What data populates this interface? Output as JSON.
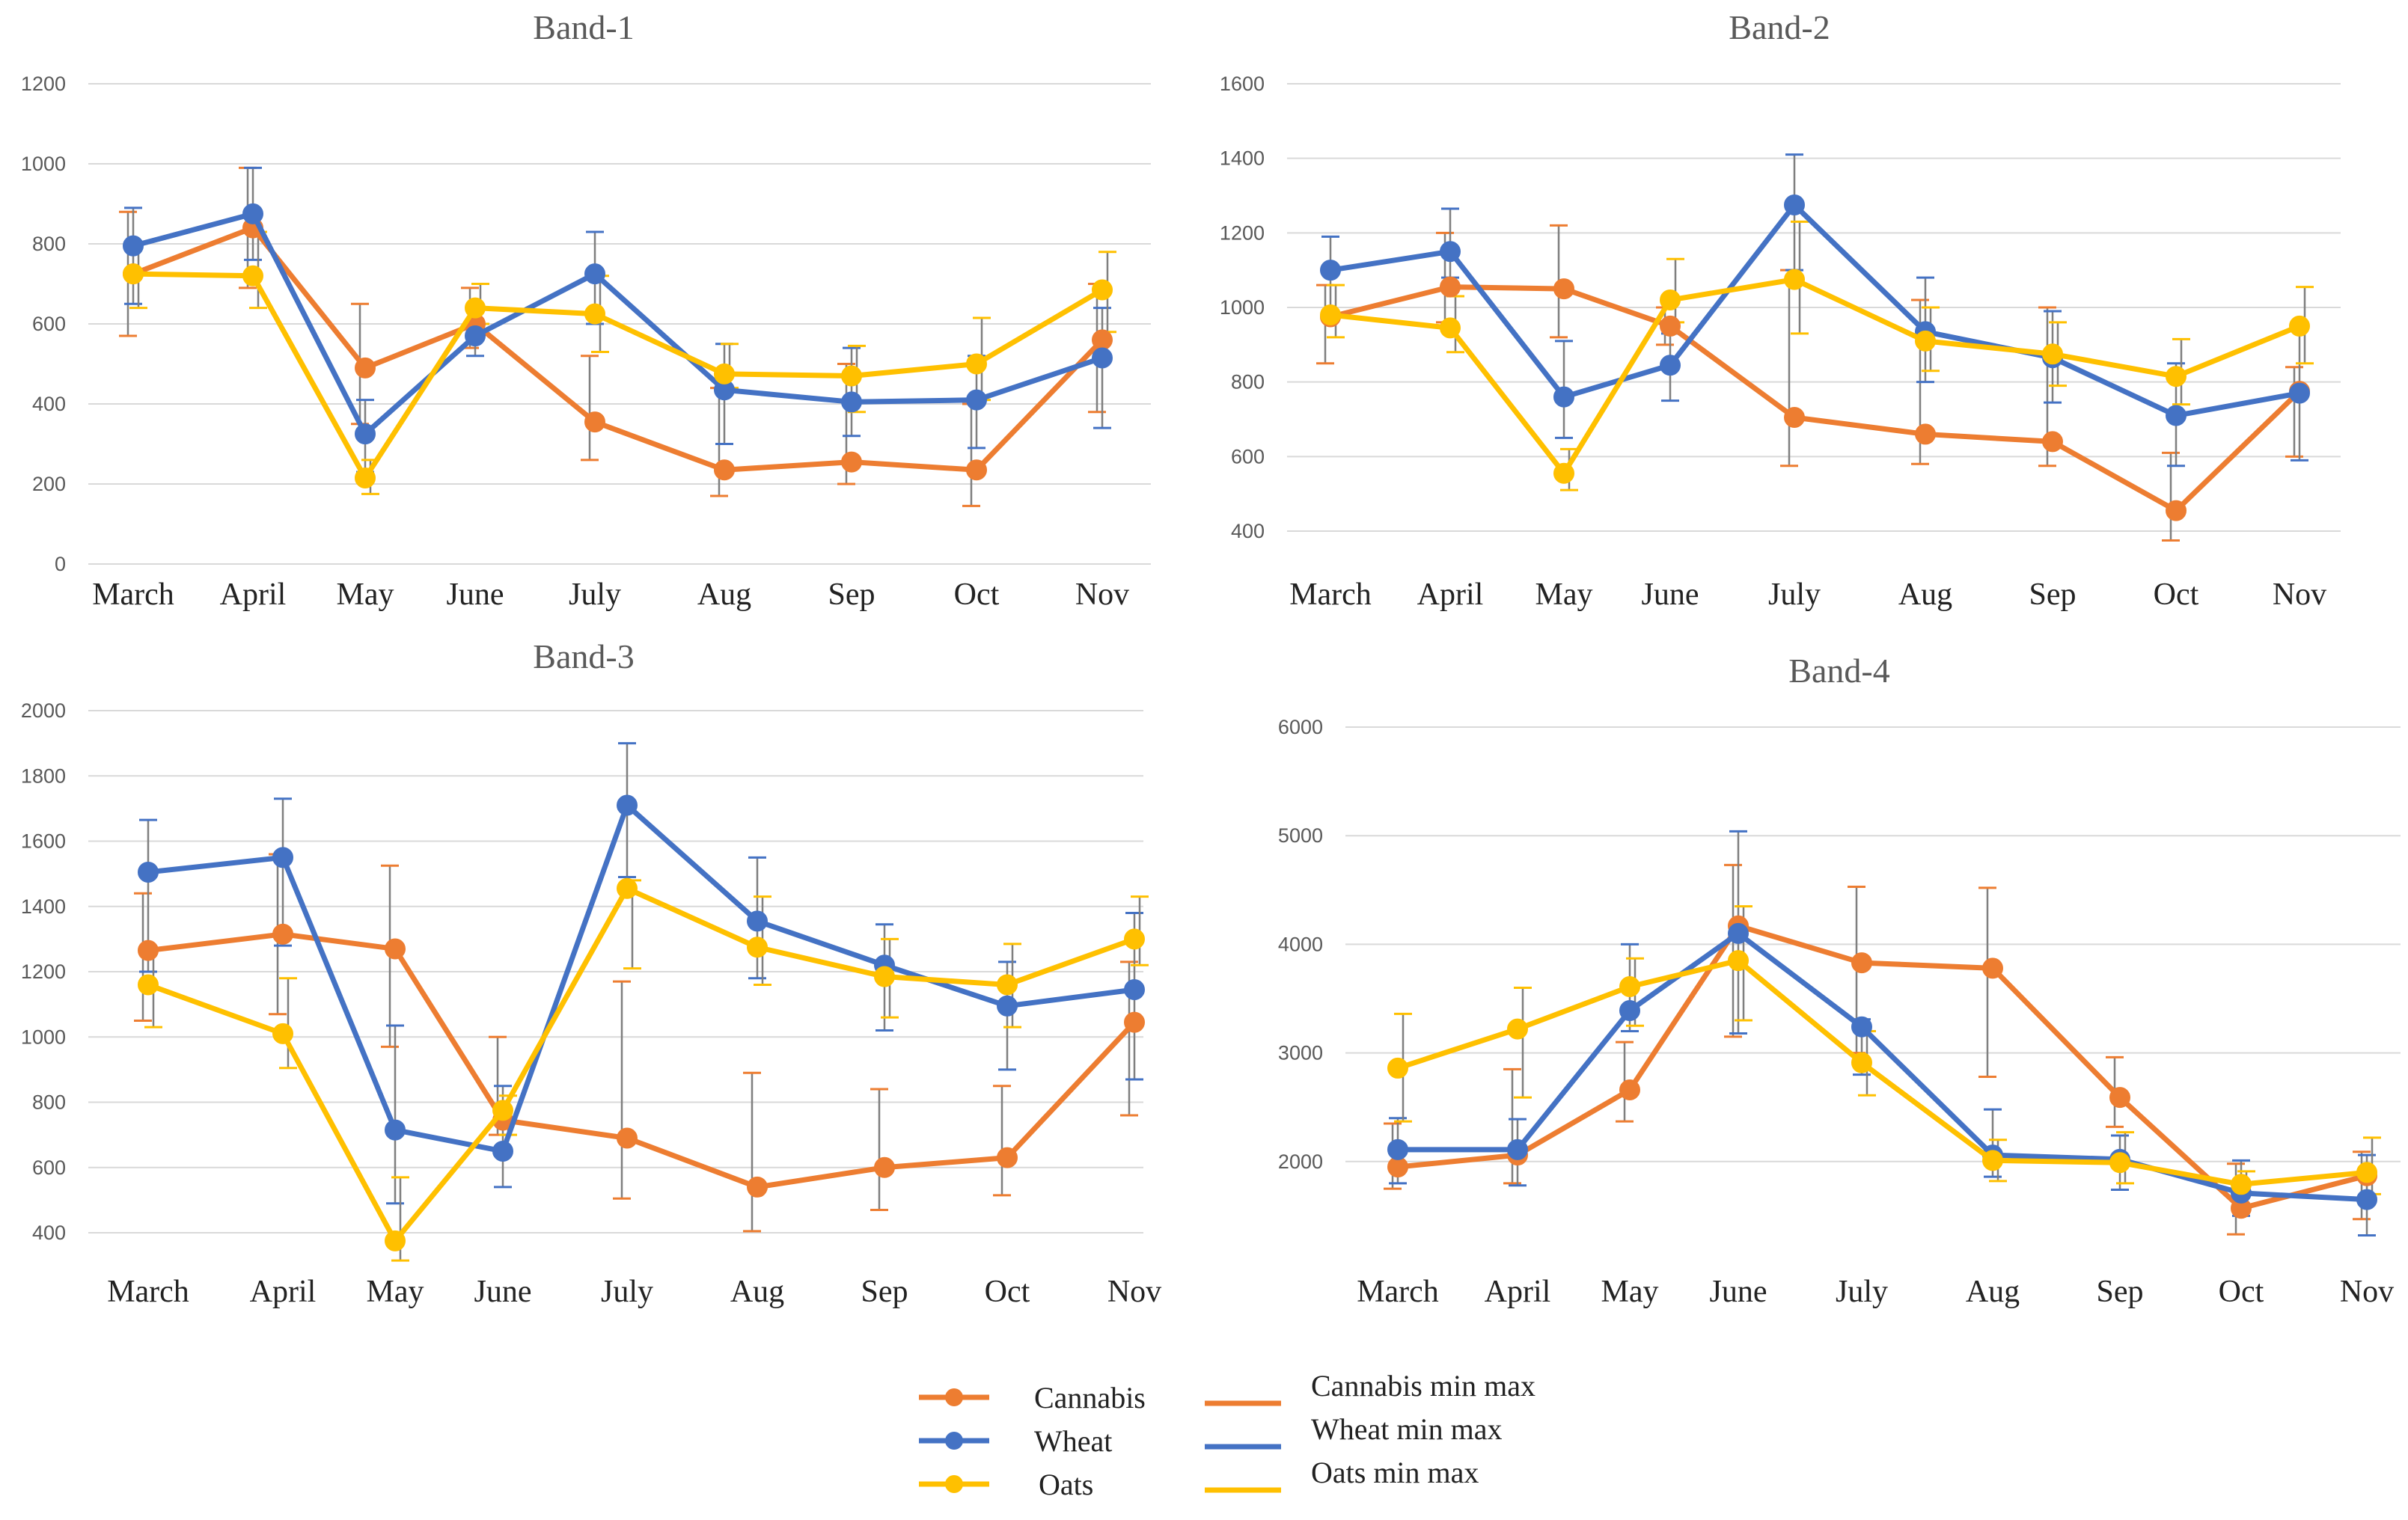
{
  "chart_data": [
    {
      "type": "line",
      "title": "Band-1",
      "categories": [
        "March",
        "April",
        "May",
        "June",
        "July",
        "Aug",
        "Sep",
        "Oct",
        "Nov"
      ],
      "ylim": [
        0,
        1200
      ],
      "yticks": [
        0,
        200,
        400,
        600,
        800,
        1000,
        1200
      ],
      "series": [
        {
          "name": "Cannabis",
          "values": [
            725,
            840,
            490,
            600,
            355,
            235,
            255,
            235,
            560
          ],
          "min": [
            570,
            690,
            350,
            540,
            260,
            170,
            200,
            145,
            380
          ],
          "max": [
            880,
            990,
            650,
            690,
            520,
            440,
            500,
            400,
            700
          ]
        },
        {
          "name": "Wheat",
          "values": [
            795,
            875,
            325,
            570,
            725,
            435,
            405,
            410,
            515
          ],
          "min": [
            650,
            760,
            230,
            520,
            600,
            300,
            320,
            290,
            340
          ],
          "max": [
            890,
            990,
            410,
            630,
            830,
            550,
            540,
            520,
            640
          ]
        },
        {
          "name": "Oats",
          "values": [
            725,
            720,
            215,
            640,
            625,
            475,
            470,
            500,
            685
          ],
          "min": [
            640,
            640,
            175,
            600,
            530,
            440,
            380,
            410,
            580
          ],
          "max": [
            800,
            830,
            260,
            700,
            720,
            550,
            545,
            615,
            780
          ]
        }
      ]
    },
    {
      "type": "line",
      "title": "Band-2",
      "categories": [
        "March",
        "April",
        "May",
        "June",
        "July",
        "Aug",
        "Sep",
        "Oct",
        "Nov"
      ],
      "ylim": [
        400,
        1600
      ],
      "yticks": [
        400,
        600,
        800,
        1000,
        1200,
        1400,
        1600
      ],
      "series": [
        {
          "name": "Cannabis",
          "values": [
            975,
            1055,
            1050,
            950,
            705,
            660,
            640,
            455,
            775
          ],
          "min": [
            850,
            960,
            920,
            900,
            575,
            580,
            575,
            375,
            600
          ],
          "max": [
            1060,
            1200,
            1220,
            1000,
            1100,
            1020,
            1000,
            610,
            840
          ]
        },
        {
          "name": "Wheat",
          "values": [
            1100,
            1150,
            760,
            845,
            1275,
            935,
            865,
            710,
            770
          ],
          "min": [
            980,
            1080,
            650,
            750,
            1100,
            800,
            745,
            575,
            590
          ],
          "max": [
            1190,
            1265,
            910,
            930,
            1410,
            1080,
            990,
            850,
            960
          ]
        },
        {
          "name": "Oats",
          "values": [
            980,
            945,
            555,
            1020,
            1075,
            910,
            875,
            815,
            950
          ],
          "min": [
            920,
            880,
            510,
            960,
            930,
            830,
            790,
            740,
            850
          ],
          "max": [
            1060,
            1030,
            620,
            1130,
            1230,
            1000,
            960,
            915,
            1055
          ]
        }
      ]
    },
    {
      "type": "line",
      "title": "Band-3",
      "categories": [
        "March",
        "April",
        "May",
        "June",
        "July",
        "Aug",
        "Sep",
        "Oct",
        "Nov"
      ],
      "ylim": [
        400,
        2000
      ],
      "yticks": [
        400,
        600,
        800,
        1000,
        1200,
        1400,
        1600,
        1800,
        2000
      ],
      "series": [
        {
          "name": "Cannabis",
          "values": [
            1265,
            1315,
            1270,
            745,
            690,
            540,
            600,
            630,
            1045
          ],
          "min": [
            1050,
            1070,
            970,
            700,
            505,
            405,
            470,
            515,
            760
          ],
          "max": [
            1440,
            1560,
            1525,
            1000,
            1170,
            890,
            840,
            850,
            1230
          ]
        },
        {
          "name": "Wheat",
          "values": [
            1505,
            1550,
            715,
            650,
            1710,
            1355,
            1220,
            1095,
            1145
          ],
          "min": [
            1200,
            1280,
            490,
            540,
            1490,
            1180,
            1020,
            900,
            870
          ],
          "max": [
            1665,
            1730,
            1035,
            850,
            1900,
            1550,
            1345,
            1230,
            1380
          ]
        },
        {
          "name": "Oats",
          "values": [
            1160,
            1010,
            375,
            775,
            1455,
            1275,
            1185,
            1160,
            1300
          ],
          "min": [
            1030,
            905,
            315,
            700,
            1210,
            1160,
            1060,
            1030,
            1220
          ],
          "max": [
            1270,
            1180,
            570,
            820,
            1480,
            1430,
            1300,
            1285,
            1430
          ]
        }
      ]
    },
    {
      "type": "line",
      "title": "Band-4",
      "categories": [
        "March",
        "April",
        "May",
        "June",
        "July",
        "Aug",
        "Sep",
        "Oct",
        "Nov"
      ],
      "ylim": [
        1000,
        6000
      ],
      "yticks": [
        2000,
        3000,
        4000,
        5000,
        6000
      ],
      "series": [
        {
          "name": "Cannabis",
          "values": [
            1950,
            2060,
            2660,
            4170,
            3830,
            3780,
            2590,
            1570,
            1870
          ],
          "min": [
            1750,
            1800,
            2370,
            3150,
            3000,
            2780,
            2320,
            1330,
            1470
          ],
          "max": [
            2350,
            2850,
            3100,
            4730,
            4530,
            4520,
            2960,
            1980,
            2090
          ]
        },
        {
          "name": "Wheat",
          "values": [
            2110,
            2110,
            3390,
            4100,
            3240,
            2060,
            2020,
            1710,
            1650
          ],
          "min": [
            1800,
            1780,
            3200,
            3180,
            2800,
            1860,
            1740,
            1500,
            1320
          ],
          "max": [
            2400,
            2390,
            4000,
            5040,
            3310,
            2480,
            2240,
            2010,
            2060
          ]
        },
        {
          "name": "Oats",
          "values": [
            2860,
            3220,
            3610,
            3850,
            2910,
            2010,
            1990,
            1790,
            1900
          ],
          "min": [
            2370,
            2590,
            3250,
            3300,
            2610,
            1820,
            1800,
            1600,
            1700
          ],
          "max": [
            3360,
            3600,
            3870,
            4350,
            3200,
            2200,
            2270,
            1910,
            2220
          ]
        }
      ]
    }
  ],
  "colors": {
    "Cannabis": "#ED7D31",
    "Wheat": "#4472C4",
    "Oats": "#FFC000",
    "errorbar": "#7f7f7f"
  },
  "legend": {
    "markers": [
      "Cannabis",
      "Wheat",
      "Oats"
    ],
    "lines": [
      "Cannabis min max",
      "Wheat min max",
      "Oats min max"
    ]
  }
}
